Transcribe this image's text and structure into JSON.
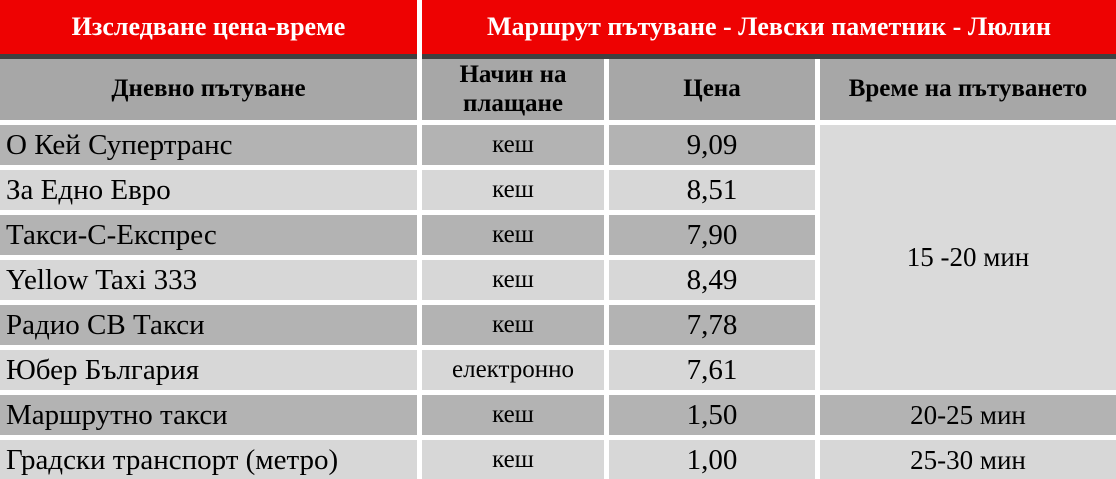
{
  "title_band": {
    "left": "Изследване цена-време",
    "right": "Маршрут пътуване - Левски паметник - Люлин"
  },
  "columns": [
    "Дневно пътуване",
    "Начин на плащане",
    "Цена",
    "Време на пътуването"
  ],
  "rows": [
    {
      "name": "О Кей Супертранс",
      "payment": "кеш",
      "price": "9,09"
    },
    {
      "name": "За Едно Евро",
      "payment": "кеш",
      "price": "8,51"
    },
    {
      "name": "Такси-С-Експрес",
      "payment": "кеш",
      "price": "7,90"
    },
    {
      "name": "Yellow Taxi 333",
      "payment": "кеш",
      "price": "8,49"
    },
    {
      "name": "Радио СВ Такси",
      "payment": "кеш",
      "price": "7,78"
    },
    {
      "name": "Юбер България",
      "payment": "електронно",
      "price": "7,61"
    },
    {
      "name": "Маршрутно такси",
      "payment": "кеш",
      "price": "1,50",
      "time": "20-25 мин"
    },
    {
      "name": "Градски транспорт (метро)",
      "payment": "кеш",
      "price": "1,00",
      "time": "25-30 мин"
    }
  ],
  "merged_time": "15 -20 мин",
  "colors": {
    "header_red": "#ee0202",
    "header_gray": "#a7a7a7",
    "row_dark": "#b3b3b3",
    "row_light": "#d7d7d7",
    "merged_cell_gray": "#dadada",
    "divider_dark": "#404040",
    "title_text": "#ffffff",
    "body_text": "#000000"
  }
}
